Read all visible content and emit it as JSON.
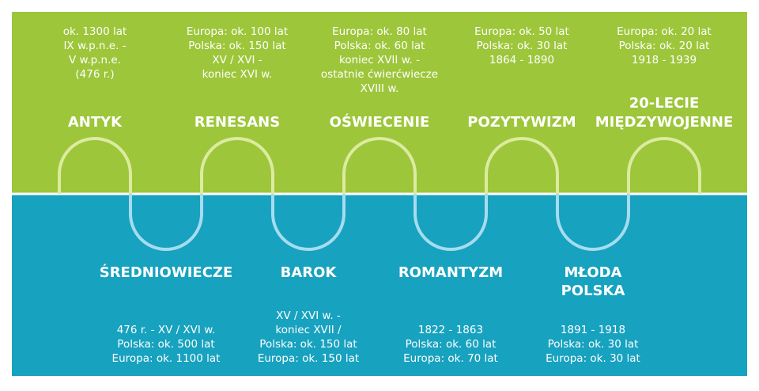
{
  "top_epochs": [
    {
      "name": [
        "ANTYK"
      ],
      "lines": [
        "ok. 1300 lat",
        "IX w.p.n.e. -",
        "V w.p.n.e.",
        "(476 r.)"
      ]
    },
    {
      "name": [
        "RENESANS"
      ],
      "lines": [
        "Europa: ok. 100 lat",
        "Polska: ok. 150 lat",
        "XV / XVI -",
        "koniec XVI w."
      ]
    },
    {
      "name": [
        "OŚWIECENIE"
      ],
      "lines": [
        "Europa: ok. 80 lat",
        "Polska: ok. 60 lat",
        "koniec XVII w. -",
        "ostatnie ćwierćwiecze",
        "XVIII w."
      ]
    },
    {
      "name": [
        "POZYTYWIZM"
      ],
      "lines": [
        "Europa: ok. 50 lat",
        "Polska: ok. 30 lat",
        "1864 - 1890"
      ]
    },
    {
      "name": [
        "20-LECIE",
        "MIĘDZYWOJENNE"
      ],
      "lines": [
        "Europa: ok. 20 lat",
        "Polska: ok. 20 lat",
        "1918 - 1939"
      ]
    }
  ],
  "bottom_epochs": [
    {
      "name": [
        "ŚREDNIOWIECZE"
      ],
      "lines": [
        "476 r. - XV / XVI w.",
        "Polska: ok. 500 lat",
        "Europa: ok. 1100 lat"
      ]
    },
    {
      "name": [
        "BAROK"
      ],
      "lines": [
        "XV / XVI w. -",
        "koniec XVII /",
        "Polska: ok. 150 lat",
        "Europa: ok. 150 lat"
      ]
    },
    {
      "name": [
        "ROMANTYZM"
      ],
      "lines": [
        "1822 - 1863",
        "Polska: ok. 60 lat",
        "Europa: ok. 70 lat"
      ]
    },
    {
      "name": [
        "MŁODA",
        "POLSKA"
      ],
      "lines": [
        "1891 - 1918",
        "Polska: ok. 30 lat",
        "Europa: ok. 30 lat"
      ]
    }
  ]
}
